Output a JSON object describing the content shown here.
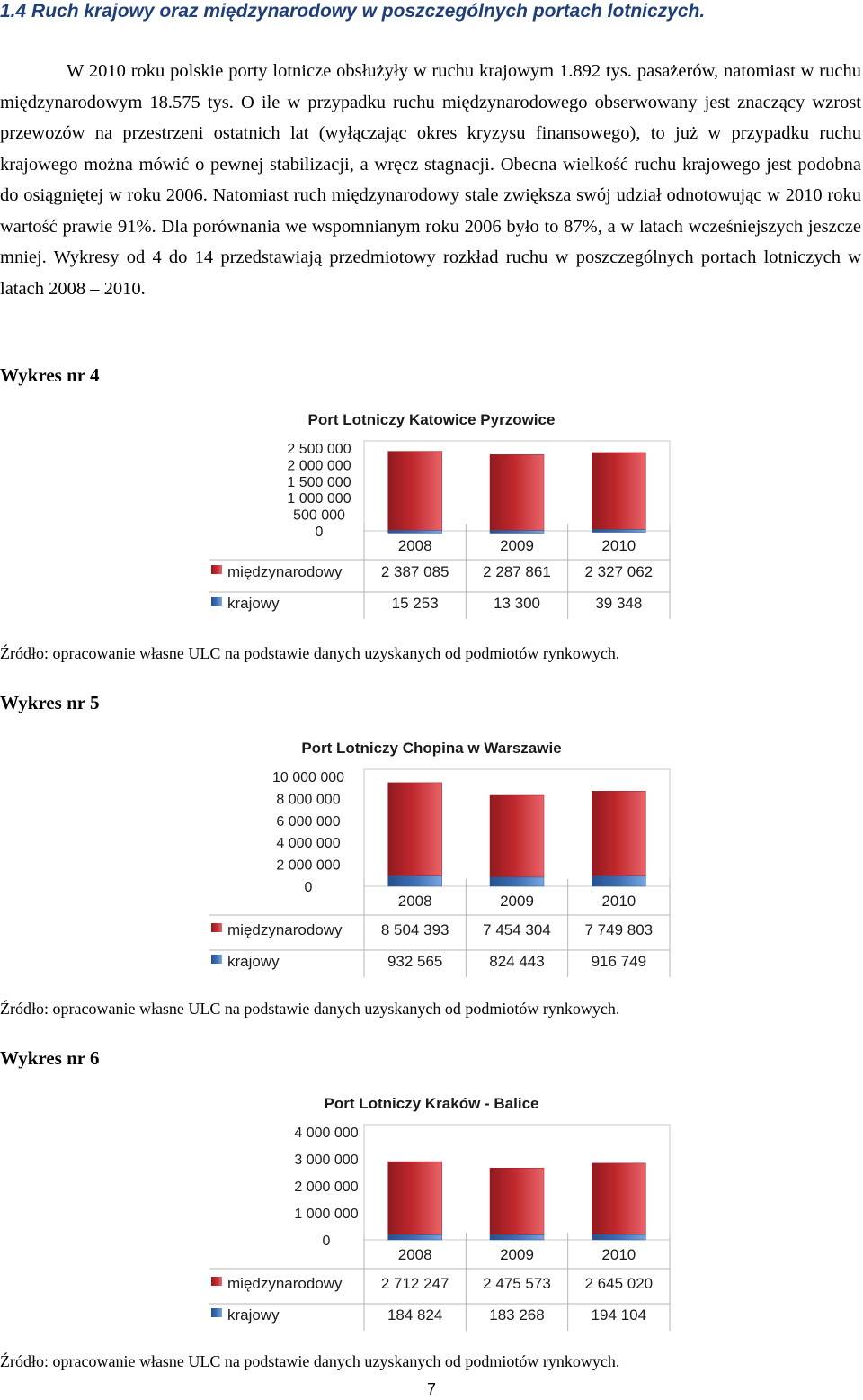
{
  "heading": "1.4 Ruch krajowy oraz międzynarodowy w poszczególnych portach lotniczych.",
  "paragraph": "W 2010 roku polskie porty lotnicze obsłużyły w ruchu krajowym 1.892 tys. pasażerów, natomiast w ruchu międzynarodowym 18.575 tys. O ile w przypadku ruchu międzynarodowego obserwowany jest znaczący wzrost przewozów na przestrzeni ostatnich lat (wyłączając okres kryzysu finansowego), to już w przypadku ruchu krajowego można mówić o pewnej stabilizacji, a wręcz stagnacji. Obecna wielkość ruchu krajowego jest podobna do osiągniętej w roku 2006. Natomiast ruch międzynarodowy stale zwiększa swój udział odnotowując w 2010 roku wartość prawie 91%. Dla porównania we wspomnianym roku 2006 było to 87%, a w latach wcześniejszych jeszcze mniej. Wykresy od 4 do 14 przedstawiają przedmiotowy rozkład ruchu w poszczególnych portach lotniczych w latach 2008 – 2010.",
  "figures": [
    {
      "label": "Wykres nr 4",
      "source": "Źródło: opracowanie własne ULC na podstawie danych uzyskanych od podmiotów rynkowych."
    },
    {
      "label": "Wykres nr 5",
      "source": "Źródło: opracowanie własne ULC na podstawie danych uzyskanych od podmiotów rynkowych."
    },
    {
      "label": "Wykres nr 6",
      "source": "Źródło: opracowanie własne ULC na podstawie danych uzyskanych od podmiotów rynkowych."
    }
  ],
  "page_number": "7",
  "colors": {
    "international": "#c0282d",
    "domestic": "#3d6fb5"
  },
  "chart_data": [
    {
      "type": "bar",
      "stacked": true,
      "title": "Port Lotniczy Katowice Pyrzowice",
      "categories": [
        "2008",
        "2009",
        "2010"
      ],
      "yticks": [
        "2 500 000",
        "2 000 000",
        "1 500 000",
        "1 000 000",
        "500 000",
        "0"
      ],
      "ylim": [
        0,
        2500000
      ],
      "grid": false,
      "legend": "data-table",
      "series": [
        {
          "name": "międzynarodowy",
          "values": [
            2387085,
            2287861,
            2327062
          ],
          "labels": [
            "2 387 085",
            "2 287 861",
            "2 327 062"
          ]
        },
        {
          "name": "krajowy",
          "values": [
            15253,
            13300,
            39348
          ],
          "labels": [
            "15 253",
            "13 300",
            "39 348"
          ]
        }
      ]
    },
    {
      "type": "bar",
      "stacked": true,
      "title": "Port Lotniczy Chopina w Warszawie",
      "categories": [
        "2008",
        "2009",
        "2010"
      ],
      "yticks": [
        "10 000 000",
        "8 000 000",
        "6 000 000",
        "4 000 000",
        "2 000 000",
        "0"
      ],
      "ylim": [
        0,
        10000000
      ],
      "grid": false,
      "legend": "data-table",
      "series": [
        {
          "name": "międzynarodowy",
          "values": [
            8504393,
            7454304,
            7749803
          ],
          "labels": [
            "8 504 393",
            "7 454 304",
            "7 749 803"
          ]
        },
        {
          "name": "krajowy",
          "values": [
            932565,
            824443,
            916749
          ],
          "labels": [
            "932 565",
            "824 443",
            "916 749"
          ]
        }
      ]
    },
    {
      "type": "bar",
      "stacked": true,
      "title": "Port Lotniczy Kraków - Balice",
      "categories": [
        "2008",
        "2009",
        "2010"
      ],
      "yticks": [
        "4 000 000",
        "3 000 000",
        "2 000 000",
        "1 000 000",
        "0"
      ],
      "ylim": [
        0,
        4000000
      ],
      "grid": false,
      "legend": "data-table",
      "series": [
        {
          "name": "międzynarodowy",
          "values": [
            2712247,
            2475573,
            2645020
          ],
          "labels": [
            "2 712 247",
            "2 475 573",
            "2 645 020"
          ]
        },
        {
          "name": "krajowy",
          "values": [
            184824,
            183268,
            194104
          ],
          "labels": [
            "184 824",
            "183 268",
            "194 104"
          ]
        }
      ]
    }
  ]
}
